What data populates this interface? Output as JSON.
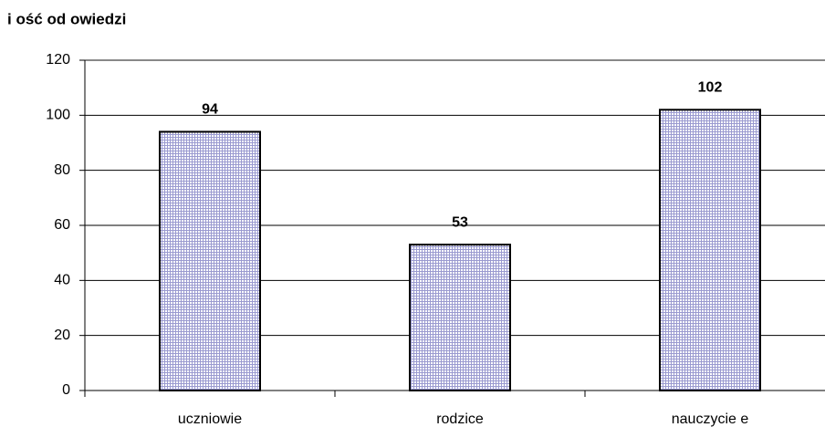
{
  "chart_data": {
    "type": "bar",
    "title": "i ość od  owiedzi",
    "categories": [
      "uczniowie",
      "rodzice",
      "nauczycie e"
    ],
    "values": [
      94,
      53,
      102
    ],
    "color": "#e6e6f5",
    "ylim": [
      0,
      120
    ],
    "yticks": [
      0,
      20,
      40,
      60,
      80,
      100,
      120
    ],
    "grid": true
  }
}
